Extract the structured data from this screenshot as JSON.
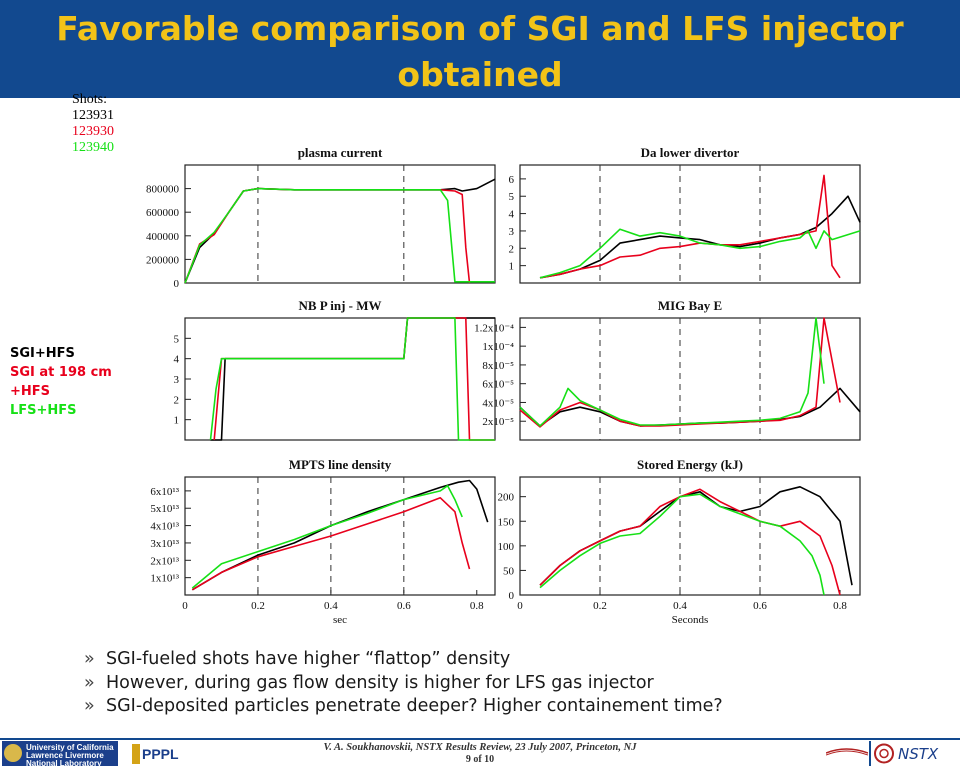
{
  "slide": {
    "title": "Favorable comparison of SGI and LFS injector obtained",
    "shots_label": "Shots:",
    "shots": [
      {
        "id": "123931",
        "color": "#000000"
      },
      {
        "id": "123930",
        "color": "#e8001c"
      },
      {
        "id": "123940",
        "color": "#16e016"
      }
    ],
    "legend": [
      {
        "text": "SGI+HFS",
        "color": "#000000"
      },
      {
        "text": "SGI at 198 cm",
        "color": "#e8001c"
      },
      {
        "text": "+HFS",
        "color": "#e8001c"
      },
      {
        "text": "LFS+HFS",
        "color": "#16e016"
      }
    ],
    "bullet_marker": "»",
    "bullets": [
      "SGI-fueled shots have higher “flattop” density",
      "However, during gas flow density is higher for LFS gas injector",
      "SGI-deposited particles penetrate deeper? Higher containement time?"
    ]
  },
  "footer": {
    "citation": "V. A. Soukhanovskii, NSTX Results Review, 23 July 2007, Princeton, NJ",
    "page": "9 of 10",
    "llnl_text": [
      "University of California",
      "Lawrence Livermore",
      "National Laboratory"
    ],
    "pppl_text": "PPPL",
    "nstx_text": "NSTX"
  },
  "colors": {
    "title_bg": "#12498f",
    "title_fg": "#f2c318",
    "shot_black": "#000000",
    "shot_red": "#e8001c",
    "shot_green": "#16e016"
  },
  "chart_data": [
    {
      "type": "line",
      "title": "plasma current",
      "x_ticks": [],
      "y_ticks": [
        "0",
        "200000",
        "400000",
        "600000",
        "800000"
      ],
      "xlim": [
        0,
        0.85
      ],
      "ylim": [
        0,
        1000000
      ],
      "vlines": [
        0.2,
        0.6
      ],
      "series": [
        {
          "name": "123931",
          "color": "#000000",
          "x": [
            0,
            0.04,
            0.08,
            0.12,
            0.16,
            0.2,
            0.3,
            0.4,
            0.5,
            0.6,
            0.7,
            0.74,
            0.76,
            0.8,
            0.85
          ],
          "y": [
            0,
            300000,
            420000,
            600000,
            780000,
            800000,
            790000,
            790000,
            790000,
            790000,
            790000,
            800000,
            780000,
            800000,
            880000
          ]
        },
        {
          "name": "123930",
          "color": "#e8001c",
          "x": [
            0,
            0.04,
            0.08,
            0.12,
            0.16,
            0.2,
            0.3,
            0.4,
            0.5,
            0.6,
            0.7,
            0.74,
            0.76,
            0.77,
            0.78
          ],
          "y": [
            0,
            330000,
            410000,
            600000,
            780000,
            800000,
            790000,
            790000,
            790000,
            790000,
            790000,
            780000,
            750000,
            300000,
            0
          ]
        },
        {
          "name": "123940",
          "color": "#16e016",
          "x": [
            0,
            0.04,
            0.08,
            0.12,
            0.16,
            0.2,
            0.3,
            0.4,
            0.5,
            0.6,
            0.7,
            0.72,
            0.74,
            0.76,
            0.85
          ],
          "y": [
            0,
            320000,
            430000,
            600000,
            780000,
            800000,
            790000,
            790000,
            790000,
            790000,
            790000,
            700000,
            10000,
            10000,
            10000
          ]
        }
      ]
    },
    {
      "type": "line",
      "title": "Da lower divertor",
      "x_ticks": [],
      "y_ticks": [
        "1",
        "2",
        "3",
        "4",
        "5",
        "6"
      ],
      "xlim": [
        0,
        0.85
      ],
      "ylim": [
        0,
        6.8
      ],
      "vlines": [
        0.2,
        0.4,
        0.6
      ],
      "series": [
        {
          "name": "123931",
          "color": "#000000",
          "x": [
            0.05,
            0.1,
            0.15,
            0.2,
            0.25,
            0.3,
            0.35,
            0.4,
            0.45,
            0.5,
            0.55,
            0.6,
            0.65,
            0.7,
            0.74,
            0.78,
            0.82,
            0.85
          ],
          "y": [
            0.3,
            0.5,
            0.8,
            1.3,
            2.3,
            2.5,
            2.7,
            2.6,
            2.5,
            2.2,
            2.1,
            2.3,
            2.6,
            2.8,
            3.2,
            4,
            5,
            3.5
          ]
        },
        {
          "name": "123930",
          "color": "#e8001c",
          "x": [
            0.05,
            0.1,
            0.15,
            0.2,
            0.25,
            0.3,
            0.35,
            0.4,
            0.45,
            0.5,
            0.55,
            0.6,
            0.65,
            0.7,
            0.74,
            0.76,
            0.78,
            0.8
          ],
          "y": [
            0.3,
            0.5,
            0.8,
            1,
            1.5,
            1.6,
            2,
            2.1,
            2.3,
            2.2,
            2.2,
            2.4,
            2.6,
            2.8,
            3,
            6.2,
            1,
            0.3
          ]
        },
        {
          "name": "123940",
          "color": "#16e016",
          "x": [
            0.05,
            0.1,
            0.15,
            0.2,
            0.25,
            0.3,
            0.35,
            0.4,
            0.45,
            0.5,
            0.55,
            0.6,
            0.65,
            0.7,
            0.72,
            0.74,
            0.76,
            0.78,
            0.85
          ],
          "y": [
            0.3,
            0.6,
            1,
            2,
            3.1,
            2.7,
            2.9,
            2.7,
            2.3,
            2.2,
            2,
            2.1,
            2.4,
            2.6,
            3,
            2,
            3,
            2.5,
            3
          ]
        }
      ]
    },
    {
      "type": "line",
      "title": "NB P inj - MW",
      "x_ticks": [],
      "y_ticks": [
        "1",
        "2",
        "3",
        "4",
        "5"
      ],
      "xlim": [
        0,
        0.85
      ],
      "ylim": [
        0,
        6
      ],
      "vlines": [],
      "series": [
        {
          "name": "123931",
          "color": "#000000",
          "x": [
            0.07,
            0.1,
            0.11,
            0.6,
            0.61,
            0.85
          ],
          "y": [
            0,
            0,
            4,
            4,
            6,
            6
          ]
        },
        {
          "name": "123930",
          "color": "#e8001c",
          "x": [
            0.08,
            0.09,
            0.1,
            0.6,
            0.61,
            0.77,
            0.78,
            0.85
          ],
          "y": [
            0,
            2,
            4,
            4,
            6,
            6,
            0,
            0
          ]
        },
        {
          "name": "123940",
          "color": "#16e016",
          "x": [
            0.07,
            0.085,
            0.1,
            0.6,
            0.61,
            0.74,
            0.75,
            0.85
          ],
          "y": [
            0,
            2.5,
            4,
            4,
            6,
            6,
            0,
            0
          ]
        }
      ]
    },
    {
      "type": "line",
      "title": "MIG Bay E",
      "x_ticks": [],
      "y_ticks": [
        "2x10⁻⁵",
        "4x10⁻⁵",
        "6x10⁻⁵",
        "8x10⁻⁵",
        "1x10⁻⁴",
        "1.2x10⁻⁴"
      ],
      "xlim": [
        0,
        0.85
      ],
      "ylim": [
        0,
        0.00013
      ],
      "vlines": [
        0.2,
        0.4,
        0.6
      ],
      "series": [
        {
          "name": "123931",
          "color": "#000000",
          "x": [
            0,
            0.05,
            0.1,
            0.15,
            0.2,
            0.25,
            0.3,
            0.35,
            0.4,
            0.45,
            0.5,
            0.55,
            0.6,
            0.65,
            0.7,
            0.75,
            0.8,
            0.85
          ],
          "y": [
            3.5e-05,
            1.5e-05,
            3e-05,
            3.5e-05,
            3e-05,
            2e-05,
            1.5e-05,
            1.6e-05,
            1.7e-05,
            1.8e-05,
            1.8e-05,
            1.9e-05,
            2e-05,
            2.2e-05,
            2.5e-05,
            3.5e-05,
            5.5e-05,
            3e-05
          ]
        },
        {
          "name": "123930",
          "color": "#e8001c",
          "x": [
            0,
            0.05,
            0.1,
            0.15,
            0.2,
            0.25,
            0.3,
            0.35,
            0.4,
            0.45,
            0.5,
            0.55,
            0.6,
            0.65,
            0.7,
            0.74,
            0.76,
            0.8
          ],
          "y": [
            3.2e-05,
            1.4e-05,
            3.2e-05,
            4e-05,
            3.2e-05,
            2e-05,
            1.5e-05,
            1.5e-05,
            1.6e-05,
            1.7e-05,
            1.8e-05,
            1.9e-05,
            2e-05,
            2.1e-05,
            2.6e-05,
            3.5e-05,
            0.00013,
            4e-05
          ]
        },
        {
          "name": "123940",
          "color": "#16e016",
          "x": [
            0,
            0.05,
            0.1,
            0.12,
            0.15,
            0.2,
            0.25,
            0.3,
            0.35,
            0.4,
            0.45,
            0.5,
            0.55,
            0.6,
            0.65,
            0.7,
            0.72,
            0.74,
            0.76
          ],
          "y": [
            3.5e-05,
            1.5e-05,
            3.5e-05,
            5.5e-05,
            4.2e-05,
            3.2e-05,
            2.2e-05,
            1.6e-05,
            1.6e-05,
            1.7e-05,
            1.8e-05,
            1.9e-05,
            2e-05,
            2.1e-05,
            2.3e-05,
            3e-05,
            5e-05,
            0.00013,
            6e-05
          ]
        }
      ]
    },
    {
      "type": "line",
      "title": "MPTS line density",
      "xlabel": "sec",
      "x_ticks": [
        "0",
        "0.2",
        "0.4",
        "0.6",
        "0.8"
      ],
      "y_ticks": [
        "1x10¹³",
        "2x10¹³",
        "3x10¹³",
        "4x10¹³",
        "5x10¹³",
        "6x10¹³"
      ],
      "xlim": [
        0,
        0.85
      ],
      "ylim": [
        0,
        68000000000000.0
      ],
      "vlines": [
        0.2,
        0.4,
        0.6
      ],
      "series": [
        {
          "name": "123931",
          "color": "#000000",
          "x": [
            0.02,
            0.1,
            0.2,
            0.3,
            0.4,
            0.5,
            0.6,
            0.7,
            0.75,
            0.78,
            0.8,
            0.83
          ],
          "y": [
            3000000000000.0,
            13000000000000.0,
            23000000000000.0,
            30000000000000.0,
            40000000000000.0,
            48000000000000.0,
            55000000000000.0,
            62000000000000.0,
            65000000000000.0,
            66000000000000.0,
            61000000000000.0,
            42000000000000.0
          ]
        },
        {
          "name": "123930",
          "color": "#e8001c",
          "x": [
            0.02,
            0.1,
            0.2,
            0.3,
            0.4,
            0.5,
            0.6,
            0.7,
            0.74,
            0.76,
            0.78
          ],
          "y": [
            3000000000000.0,
            13000000000000.0,
            22000000000000.0,
            28000000000000.0,
            34000000000000.0,
            41000000000000.0,
            48000000000000.0,
            56000000000000.0,
            48000000000000.0,
            30000000000000.0,
            15000000000000.0
          ]
        },
        {
          "name": "123940",
          "color": "#16e016",
          "x": [
            0.02,
            0.1,
            0.2,
            0.3,
            0.4,
            0.5,
            0.6,
            0.7,
            0.72,
            0.74,
            0.76
          ],
          "y": [
            4000000000000.0,
            18000000000000.0,
            25000000000000.0,
            32000000000000.0,
            40000000000000.0,
            47000000000000.0,
            55000000000000.0,
            60000000000000.0,
            63000000000000.0,
            55000000000000.0,
            45000000000000.0
          ]
        }
      ]
    },
    {
      "type": "line",
      "title": "Stored Energy (kJ)",
      "xlabel": "Seconds",
      "x_ticks": [
        "0",
        "0.2",
        "0.4",
        "0.6",
        "0.8"
      ],
      "y_ticks": [
        "0",
        "50",
        "100",
        "150",
        "200"
      ],
      "xlim": [
        0,
        0.85
      ],
      "ylim": [
        0,
        240
      ],
      "vlines": [
        0.2,
        0.4,
        0.6
      ],
      "series": [
        {
          "name": "123931",
          "color": "#000000",
          "x": [
            0.05,
            0.1,
            0.15,
            0.2,
            0.25,
            0.3,
            0.35,
            0.4,
            0.45,
            0.5,
            0.55,
            0.6,
            0.65,
            0.7,
            0.75,
            0.8,
            0.83
          ],
          "y": [
            20,
            60,
            90,
            110,
            130,
            140,
            170,
            200,
            210,
            180,
            170,
            180,
            210,
            220,
            200,
            150,
            20
          ]
        },
        {
          "name": "123930",
          "color": "#e8001c",
          "x": [
            0.05,
            0.1,
            0.15,
            0.2,
            0.25,
            0.3,
            0.35,
            0.4,
            0.45,
            0.5,
            0.55,
            0.6,
            0.65,
            0.7,
            0.75,
            0.78,
            0.8
          ],
          "y": [
            20,
            60,
            90,
            110,
            130,
            140,
            180,
            200,
            215,
            190,
            170,
            150,
            140,
            150,
            120,
            60,
            0
          ]
        },
        {
          "name": "123940",
          "color": "#16e016",
          "x": [
            0.05,
            0.1,
            0.15,
            0.2,
            0.25,
            0.3,
            0.35,
            0.4,
            0.45,
            0.5,
            0.55,
            0.6,
            0.65,
            0.7,
            0.73,
            0.75,
            0.76
          ],
          "y": [
            15,
            50,
            80,
            105,
            120,
            125,
            160,
            200,
            205,
            180,
            165,
            150,
            140,
            110,
            80,
            40,
            0
          ]
        }
      ]
    }
  ]
}
